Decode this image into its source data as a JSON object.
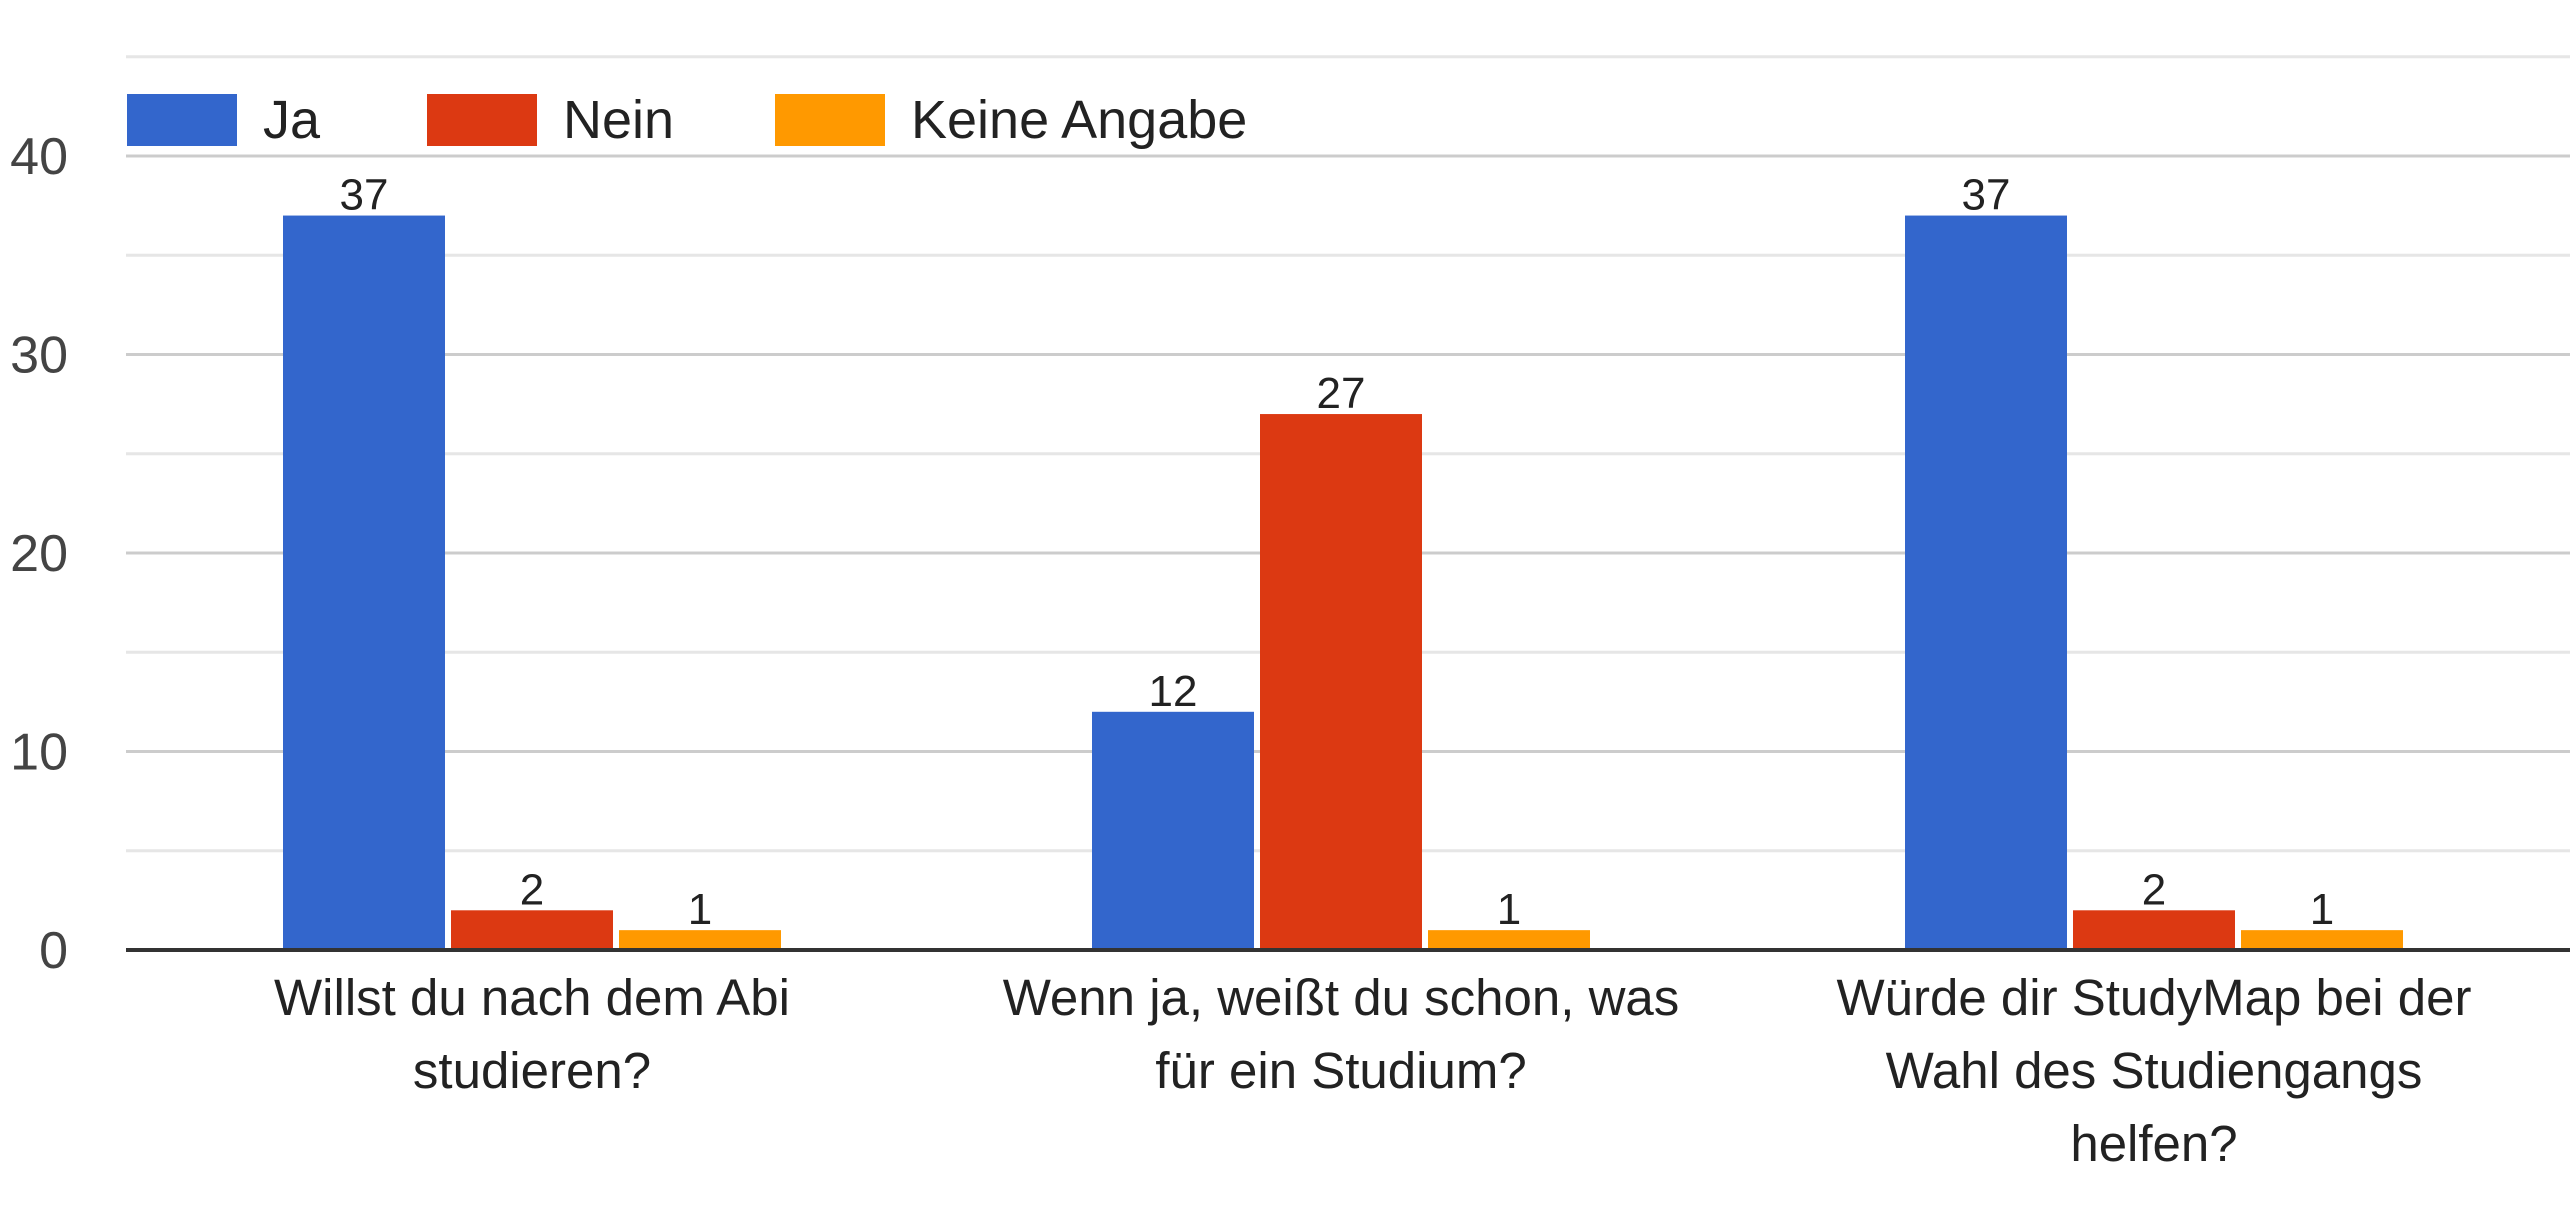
{
  "chart_data": {
    "type": "bar",
    "title": "",
    "xlabel": "",
    "ylabel": "",
    "categories": [
      [
        "Willst du nach dem Abi",
        "studieren?"
      ],
      [
        "Wenn ja, weißt du schon, was",
        "für ein Studium?"
      ],
      [
        "Würde dir StudyMap bei der",
        "Wahl des Studiengangs",
        "helfen?"
      ]
    ],
    "series": [
      {
        "name": "Ja",
        "color": "#3366cc",
        "values": [
          37,
          12,
          37
        ]
      },
      {
        "name": "Nein",
        "color": "#dc3912",
        "values": [
          2,
          27,
          2
        ]
      },
      {
        "name": "Keine Angabe",
        "color": "#ff9900",
        "values": [
          1,
          1,
          1
        ]
      }
    ],
    "ylim": [
      0,
      45
    ],
    "yticks": [
      "0",
      "10",
      "20",
      "30",
      "40"
    ],
    "grid": true,
    "minor_grid": true,
    "legend": "top-left",
    "data_labels": true
  }
}
